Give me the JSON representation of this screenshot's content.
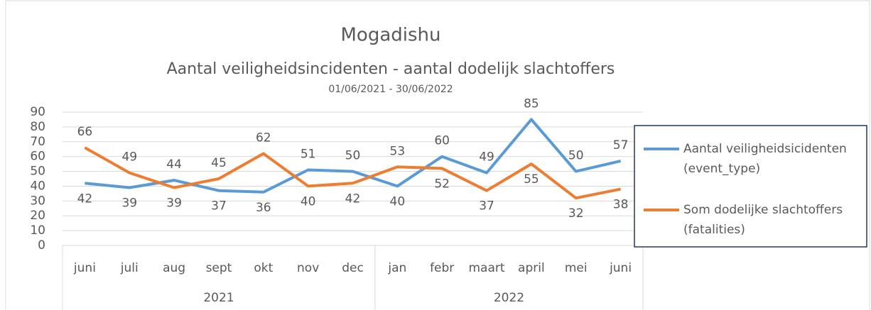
{
  "chart_data": {
    "type": "line",
    "title": "Mogadishu",
    "subtitle": "Aantal veiligheidsincidenten - aantal dodelijk slachtoffers",
    "date_range": "01/06/2021 - 30/06/2022",
    "groups": [
      {
        "name": "2021",
        "categories": [
          "juni",
          "juli",
          "aug",
          "sept",
          "okt",
          "nov",
          "dec"
        ]
      },
      {
        "name": "2022",
        "categories": [
          "jan",
          "febr",
          "maart",
          "april",
          "mei",
          "juni"
        ]
      }
    ],
    "series": [
      {
        "name": "Aantal veiligheidsicidenten (event_type)",
        "color": "#5b9bd5",
        "values": [
          42,
          39,
          44,
          37,
          36,
          51,
          50,
          40,
          60,
          49,
          85,
          50,
          57
        ]
      },
      {
        "name": "Som dodelijke slachtoffers (fatalities)",
        "color": "#ed7d31",
        "values": [
          66,
          49,
          39,
          45,
          62,
          40,
          42,
          53,
          52,
          37,
          55,
          32,
          38
        ]
      }
    ],
    "ylim": [
      0,
      90
    ],
    "yticks": [
      0,
      10,
      20,
      30,
      40,
      50,
      60,
      70,
      80,
      90
    ],
    "grid": true,
    "legend": "right"
  }
}
